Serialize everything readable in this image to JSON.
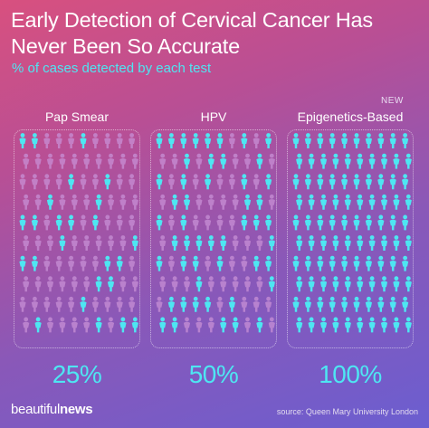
{
  "header": {
    "title_line1": "Early Detection of Cervical Cancer Has",
    "title_line2": "Never Been So Accurate",
    "subtitle": "% of cases detected by each test"
  },
  "new_tag": "NEW",
  "footer": {
    "brand_light": "beautiful",
    "brand_bold": "news",
    "source": "source: Queen Mary University London"
  },
  "colors": {
    "detected": "#4ee6f2",
    "undetected": "#c890d6",
    "accent_text": "#4ee6f2"
  },
  "icon": "person-icon",
  "chart_data": {
    "type": "bar",
    "title": "Early Detection of Cervical Cancer Has Never Been So Accurate",
    "subtitle": "% of cases detected by each test",
    "categories": [
      "Pap Smear",
      "HPV",
      "Epigenetics-Based"
    ],
    "values": [
      25,
      50,
      100
    ],
    "value_labels": [
      "25%",
      "50%",
      "100%"
    ],
    "ylim": [
      0,
      100
    ],
    "people_per_test": 100
  }
}
